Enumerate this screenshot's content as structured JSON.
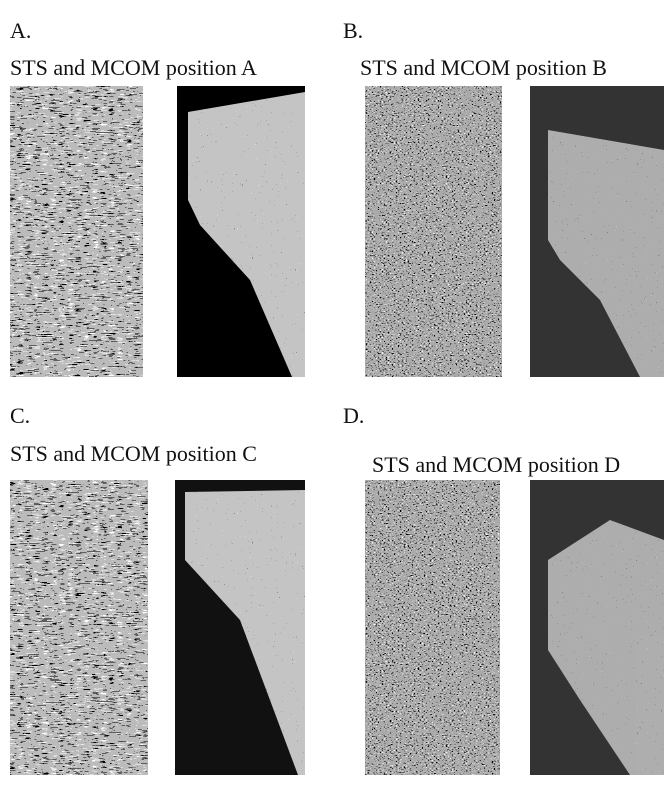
{
  "panels": [
    {
      "letter": "A.",
      "title": "STS and MCOM position A"
    },
    {
      "letter": "B.",
      "title": "STS and MCOM position B"
    },
    {
      "letter": "C.",
      "title": "STS and MCOM position C"
    },
    {
      "letter": "D.",
      "title": "STS and MCOM position D"
    }
  ]
}
